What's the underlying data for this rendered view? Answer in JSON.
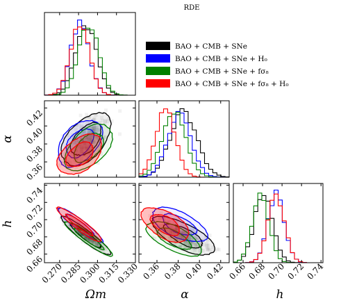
{
  "title": "RDE",
  "legend": [
    {
      "label": "BAO + CMB + SNe",
      "color": "#000000"
    },
    {
      "label": "BAO + CMB + SNe + H₀",
      "color": "#0000ff"
    },
    {
      "label": "BAO + CMB + SNe + fσ₈",
      "color": "#008000"
    },
    {
      "label": "BAO + CMB + SNe + fσ₈ + H₀",
      "color": "#ff0000"
    }
  ],
  "axes": {
    "omega_label": "Ωm",
    "alpha_label": "α",
    "h_label": "h",
    "omega_ticks": [
      "0.270",
      "0.285",
      "0.300",
      "0.315",
      "0.330"
    ],
    "alpha_x_ticks": [
      "0.36",
      "0.38",
      "0.40",
      "0.42"
    ],
    "h_x_ticks": [
      "0.66",
      "0.68",
      "0.70",
      "0.72",
      "0.74"
    ],
    "alpha_y_ticks": [
      "0.36",
      "0.38",
      "0.40",
      "0.42"
    ],
    "h_y_ticks": [
      "0.66",
      "0.68",
      "0.70",
      "0.72",
      "0.74"
    ]
  },
  "chart_data": {
    "type": "corner",
    "title": "RDE",
    "parameters": [
      "Ωm",
      "α",
      "h"
    ],
    "ranges": {
      "omega_m": [
        0.258,
        0.33
      ],
      "alpha": [
        0.343,
        0.428
      ],
      "h": [
        0.65,
        0.742
      ]
    },
    "series": [
      {
        "name": "BAO + CMB + SNe",
        "color": "#000000",
        "omega_m": {
          "mean": 0.291,
          "sigma": 0.0083
        },
        "alpha": {
          "mean": 0.385,
          "sigma": 0.0125
        },
        "h": {
          "mean": 0.681,
          "sigma": 0.0095
        },
        "corr_omega_alpha": 0.5,
        "corr_omega_h": -0.93,
        "corr_alpha_h": -0.7
      },
      {
        "name": "BAO + CMB + SNe + H₀",
        "color": "#0000ff",
        "omega_m": {
          "mean": 0.286,
          "sigma": 0.0075
        },
        "alpha": {
          "mean": 0.381,
          "sigma": 0.011
        },
        "h": {
          "mean": 0.694,
          "sigma": 0.0085
        },
        "corr_omega_alpha": 0.45,
        "corr_omega_h": -0.93,
        "corr_alpha_h": -0.6
      },
      {
        "name": "BAO + CMB + SNe + fσ₈",
        "color": "#008000",
        "omega_m": {
          "mean": 0.293,
          "sigma": 0.008
        },
        "alpha": {
          "mean": 0.376,
          "sigma": 0.011
        },
        "h": {
          "mean": 0.678,
          "sigma": 0.0085
        },
        "corr_omega_alpha": 0.5,
        "corr_omega_h": -0.93,
        "corr_alpha_h": -0.65
      },
      {
        "name": "BAO + CMB + SNe + fσ₈ + H₀",
        "color": "#ff0000",
        "omega_m": {
          "mean": 0.286,
          "sigma": 0.0075
        },
        "alpha": {
          "mean": 0.368,
          "sigma": 0.0095
        },
        "h": {
          "mean": 0.694,
          "sigma": 0.0085
        },
        "corr_omega_alpha": 0.45,
        "corr_omega_h": -0.93,
        "corr_alpha_h": -0.55
      }
    ]
  }
}
